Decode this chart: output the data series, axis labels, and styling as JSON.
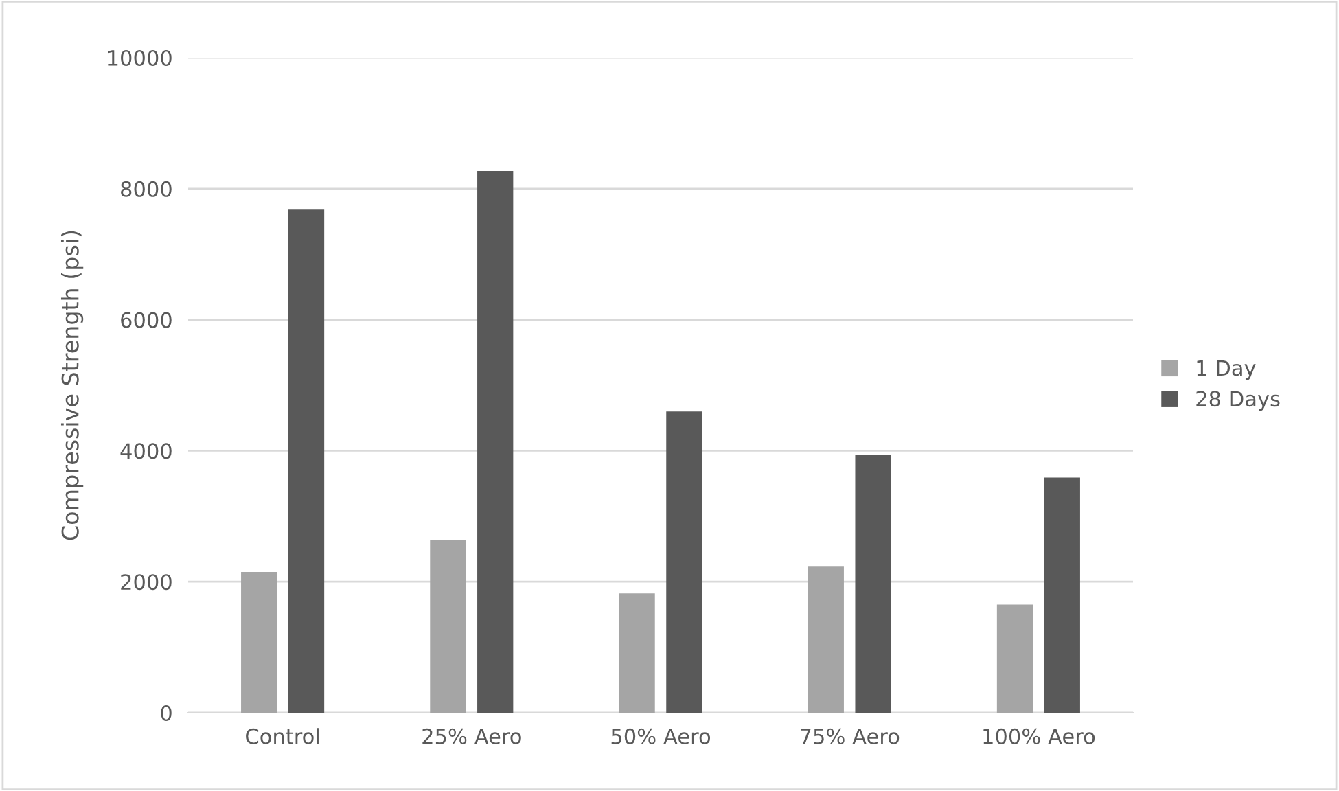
{
  "chart_data": {
    "type": "bar",
    "ylabel": "Compressive Strength (psi)",
    "categories": [
      "Control",
      "25% Aero",
      "50% Aero",
      "75% Aero",
      "100% Aero"
    ],
    "series": [
      {
        "name": "1 Day",
        "color": "#a5a5a5",
        "values": [
          2150,
          2630,
          1820,
          2230,
          1650
        ]
      },
      {
        "name": "28 Days",
        "color": "#595959",
        "values": [
          7680,
          8270,
          4600,
          3940,
          3590
        ]
      }
    ],
    "ylim": [
      0,
      10000
    ],
    "yticks": [
      0,
      2000,
      4000,
      6000,
      8000,
      10000
    ],
    "grid": "y",
    "legend": "right"
  }
}
